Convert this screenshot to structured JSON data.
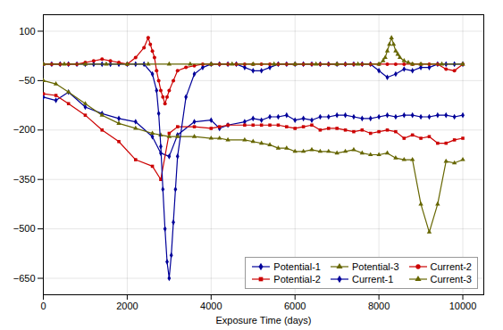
{
  "chart_data": {
    "type": "line",
    "xlabel": "Exposure Time (days)",
    "xlim": [
      0,
      10500
    ],
    "ylim": [
      -700,
      150
    ],
    "xticks": [
      0,
      2000,
      4000,
      6000,
      8000,
      10000
    ],
    "yticks": [
      100,
      -50,
      -200,
      -350,
      -500,
      -650
    ],
    "grid": true,
    "legend": "lower right",
    "series": [
      {
        "name": "Potential-1",
        "color": "#000099",
        "marker": "diamond",
        "x": [
          0,
          300,
          600,
          1000,
          1400,
          1800,
          2200,
          2600,
          2800,
          3000,
          3200,
          3600,
          4000,
          4200,
          4400,
          4800,
          5000,
          5200,
          5400,
          5600,
          5800,
          6000,
          6200,
          6400,
          6600,
          6800,
          7000,
          7200,
          7400,
          7600,
          7800,
          8000,
          8200,
          8400,
          8600,
          8800,
          9000,
          9200,
          9400,
          9600,
          9800,
          10000
        ],
        "values": [
          -100,
          -110,
          -85,
          -130,
          -150,
          -165,
          -175,
          -220,
          -270,
          -280,
          -215,
          -175,
          -170,
          -195,
          -185,
          -175,
          -165,
          -170,
          -160,
          -160,
          -155,
          -170,
          -165,
          -170,
          -160,
          -160,
          -155,
          -155,
          -160,
          -165,
          -165,
          -160,
          -155,
          -160,
          -155,
          -155,
          -160,
          -160,
          -155,
          -155,
          -160,
          -155
        ]
      },
      {
        "name": "Potential-2",
        "color": "#CC0000",
        "marker": "square",
        "x": [
          0,
          300,
          600,
          1000,
          1400,
          1800,
          2200,
          2600,
          2800,
          3000,
          3200,
          3600,
          4000,
          4200,
          4400,
          4800,
          5000,
          5200,
          5400,
          5600,
          5800,
          6000,
          6200,
          6400,
          6600,
          6800,
          7000,
          7200,
          7400,
          7600,
          7800,
          8000,
          8200,
          8400,
          8600,
          8800,
          9000,
          9200,
          9400,
          9600,
          9800,
          10000
        ],
        "values": [
          -90,
          -95,
          -120,
          -155,
          -200,
          -235,
          -290,
          -310,
          -350,
          -210,
          -190,
          -190,
          -195,
          -190,
          -185,
          -185,
          -185,
          -185,
          -185,
          -185,
          -190,
          -195,
          -190,
          -185,
          -200,
          -195,
          -195,
          -200,
          -205,
          -200,
          -210,
          -205,
          -200,
          -205,
          -225,
          -215,
          -225,
          -220,
          -240,
          -240,
          -230,
          -225
        ]
      },
      {
        "name": "Potential-3",
        "color": "#666600",
        "marker": "triangle",
        "x": [
          0,
          300,
          600,
          1000,
          1400,
          1800,
          2200,
          2600,
          2800,
          3000,
          3200,
          3600,
          4000,
          4200,
          4400,
          4800,
          5000,
          5200,
          5400,
          5600,
          5800,
          6000,
          6200,
          6400,
          6600,
          6800,
          7000,
          7200,
          7400,
          7600,
          7800,
          8000,
          8200,
          8400,
          8600,
          8800,
          9000,
          9200,
          9400,
          9600,
          9800,
          10000
        ],
        "values": [
          -50,
          -60,
          -85,
          -120,
          -155,
          -180,
          -195,
          -210,
          -215,
          -220,
          -220,
          -220,
          -225,
          -225,
          -230,
          -230,
          -235,
          -240,
          -245,
          -255,
          -255,
          -265,
          -265,
          -260,
          -265,
          -265,
          -270,
          -265,
          -260,
          -270,
          -275,
          -275,
          -270,
          -285,
          -290,
          -290,
          -425,
          -510,
          -425,
          -295,
          -300,
          -290
        ]
      },
      {
        "name": "Current-1",
        "color": "#000099",
        "marker": "diamond",
        "x": [
          0,
          200,
          400,
          600,
          800,
          1000,
          1200,
          1400,
          1600,
          1800,
          2000,
          2200,
          2400,
          2600,
          2700,
          2750,
          2800,
          2850,
          2900,
          2950,
          3000,
          3050,
          3100,
          3150,
          3200,
          3400,
          3600,
          3800,
          4000,
          4200,
          4400,
          4600,
          4800,
          5000,
          5200,
          5400,
          5600,
          5800,
          6000,
          6200,
          6400,
          6600,
          6800,
          7000,
          7200,
          7400,
          7600,
          7800,
          8000,
          8200,
          8400,
          8600,
          8800,
          9000,
          9200,
          9400,
          9600,
          9800,
          10000
        ],
        "values": [
          0,
          0,
          0,
          0,
          0,
          0,
          0,
          0,
          0,
          0,
          0,
          0,
          0,
          -30,
          -80,
          -150,
          -250,
          -380,
          -500,
          -600,
          -650,
          -580,
          -480,
          -380,
          -280,
          -100,
          -30,
          -10,
          0,
          0,
          0,
          0,
          -10,
          -20,
          -20,
          -10,
          0,
          0,
          0,
          0,
          0,
          0,
          0,
          0,
          0,
          0,
          0,
          0,
          -20,
          -40,
          -30,
          -15,
          -20,
          -10,
          -10,
          0,
          0,
          0,
          0
        ]
      },
      {
        "name": "Current-2",
        "color": "#CC0000",
        "marker": "circle",
        "x": [
          0,
          200,
          400,
          600,
          800,
          1000,
          1200,
          1400,
          1600,
          1800,
          2000,
          2200,
          2400,
          2500,
          2550,
          2600,
          2650,
          2700,
          2750,
          2800,
          2850,
          2900,
          2950,
          3000,
          3100,
          3200,
          3400,
          3600,
          3800,
          4000,
          4200,
          4400,
          4600,
          4800,
          5000,
          5200,
          5400,
          5600,
          5800,
          6000,
          6200,
          6400,
          6600,
          6800,
          7000,
          7200,
          7400,
          7600,
          7800,
          8000,
          8200,
          8400,
          8600,
          8800,
          9000,
          9200,
          9400,
          9600,
          9800,
          10000
        ],
        "values": [
          0,
          0,
          0,
          0,
          0,
          5,
          10,
          15,
          10,
          5,
          0,
          20,
          50,
          80,
          60,
          40,
          20,
          -20,
          -50,
          -80,
          -100,
          -120,
          -100,
          -80,
          -50,
          -20,
          -10,
          -5,
          0,
          0,
          0,
          0,
          0,
          0,
          0,
          0,
          0,
          0,
          0,
          0,
          0,
          0,
          0,
          0,
          0,
          0,
          0,
          0,
          0,
          0,
          0,
          0,
          0,
          0,
          0,
          0,
          0,
          -15,
          -20,
          0
        ]
      },
      {
        "name": "Current-3",
        "color": "#666600",
        "marker": "triangle",
        "x": [
          0,
          500,
          1000,
          1500,
          2000,
          2500,
          3000,
          3500,
          4000,
          4500,
          5000,
          5500,
          6000,
          6500,
          7000,
          7500,
          8000,
          8100,
          8150,
          8200,
          8250,
          8300,
          8350,
          8400,
          8450,
          8500,
          8600,
          8700,
          8800,
          9000,
          9500,
          10000
        ],
        "values": [
          0,
          0,
          0,
          0,
          0,
          0,
          0,
          0,
          0,
          0,
          0,
          0,
          0,
          0,
          0,
          0,
          0,
          10,
          20,
          40,
          60,
          80,
          60,
          40,
          30,
          20,
          10,
          5,
          0,
          0,
          0,
          0
        ]
      }
    ]
  }
}
